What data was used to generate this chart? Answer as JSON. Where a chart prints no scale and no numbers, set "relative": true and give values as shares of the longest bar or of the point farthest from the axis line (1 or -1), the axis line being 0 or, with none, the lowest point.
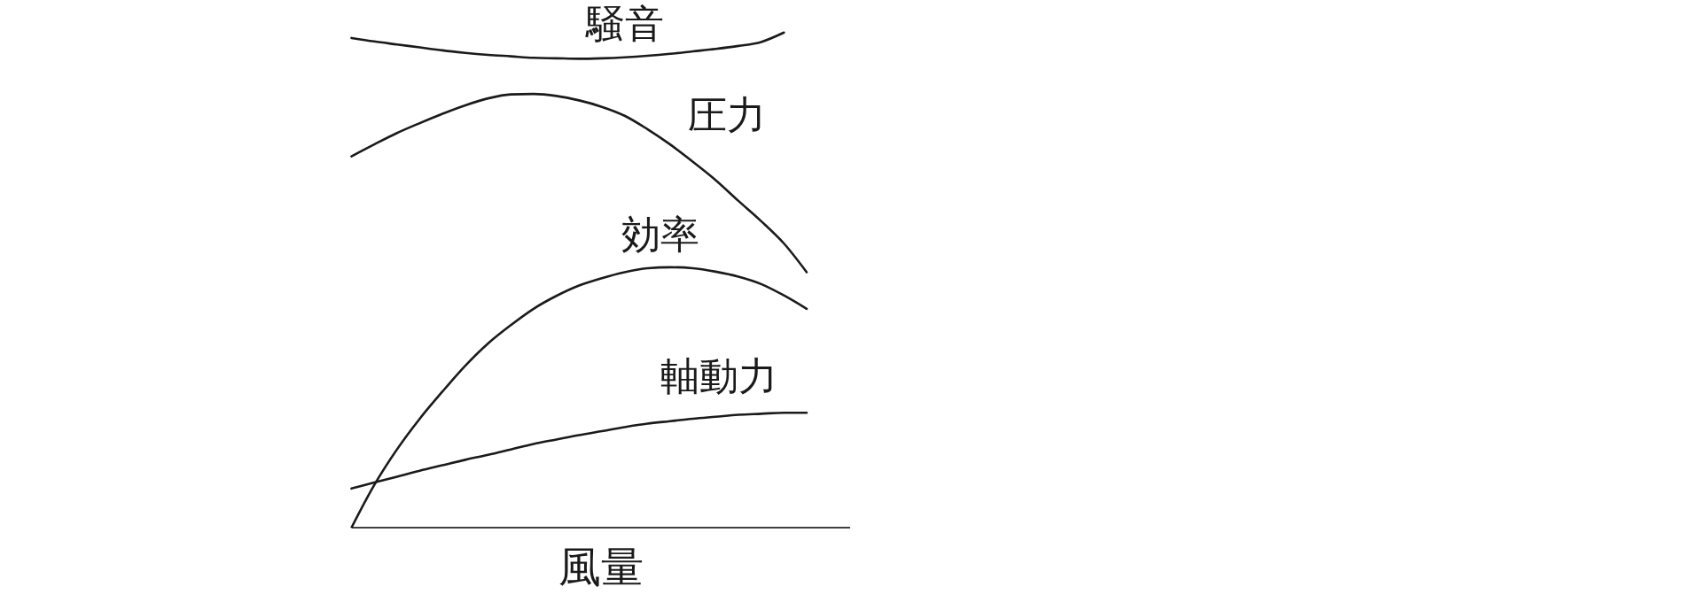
{
  "chart_data": {
    "type": "line",
    "xlabel": "風量",
    "relative": true,
    "categories": [
      null,
      null,
      null,
      null,
      null,
      null,
      null,
      null,
      null,
      null,
      null,
      null,
      null,
      null,
      null,
      null,
      null,
      null,
      null,
      null,
      null
    ],
    "series": [
      {
        "name": "騒音",
        "color": "#1a1a1a",
        "values": [
          0.989,
          0.982,
          0.976,
          0.97,
          0.964,
          0.959,
          0.955,
          0.952,
          0.949,
          0.948,
          0.947,
          0.948,
          0.95,
          0.953,
          0.957,
          0.962,
          0.967,
          0.973,
          0.981,
          1,
          null
        ]
      },
      {
        "name": "圧力",
        "color": "#1a1a1a",
        "values": [
          0.75,
          0.774,
          0.797,
          0.817,
          0.836,
          0.853,
          0.867,
          0.875,
          0.876,
          0.872,
          0.863,
          0.85,
          0.832,
          0.805,
          0.774,
          0.739,
          0.702,
          0.66,
          0.619,
          0.574,
          0.516
        ]
      },
      {
        "name": "効率",
        "color": "#1a1a1a",
        "values": [
          0,
          0.086,
          0.158,
          0.22,
          0.275,
          0.327,
          0.372,
          0.409,
          0.442,
          0.468,
          0.489,
          0.504,
          0.516,
          0.524,
          0.526,
          0.524,
          0.517,
          0.507,
          0.492,
          0.469,
          0.442
        ]
      },
      {
        "name": "軸動力",
        "color": "#1a1a1a",
        "values": [
          0.079,
          0.091,
          0.103,
          0.115,
          0.126,
          0.137,
          0.147,
          0.158,
          0.169,
          0.178,
          0.187,
          0.195,
          0.203,
          0.21,
          0.215,
          0.22,
          0.224,
          0.228,
          0.23,
          0.232,
          0.232
        ]
      }
    ]
  }
}
